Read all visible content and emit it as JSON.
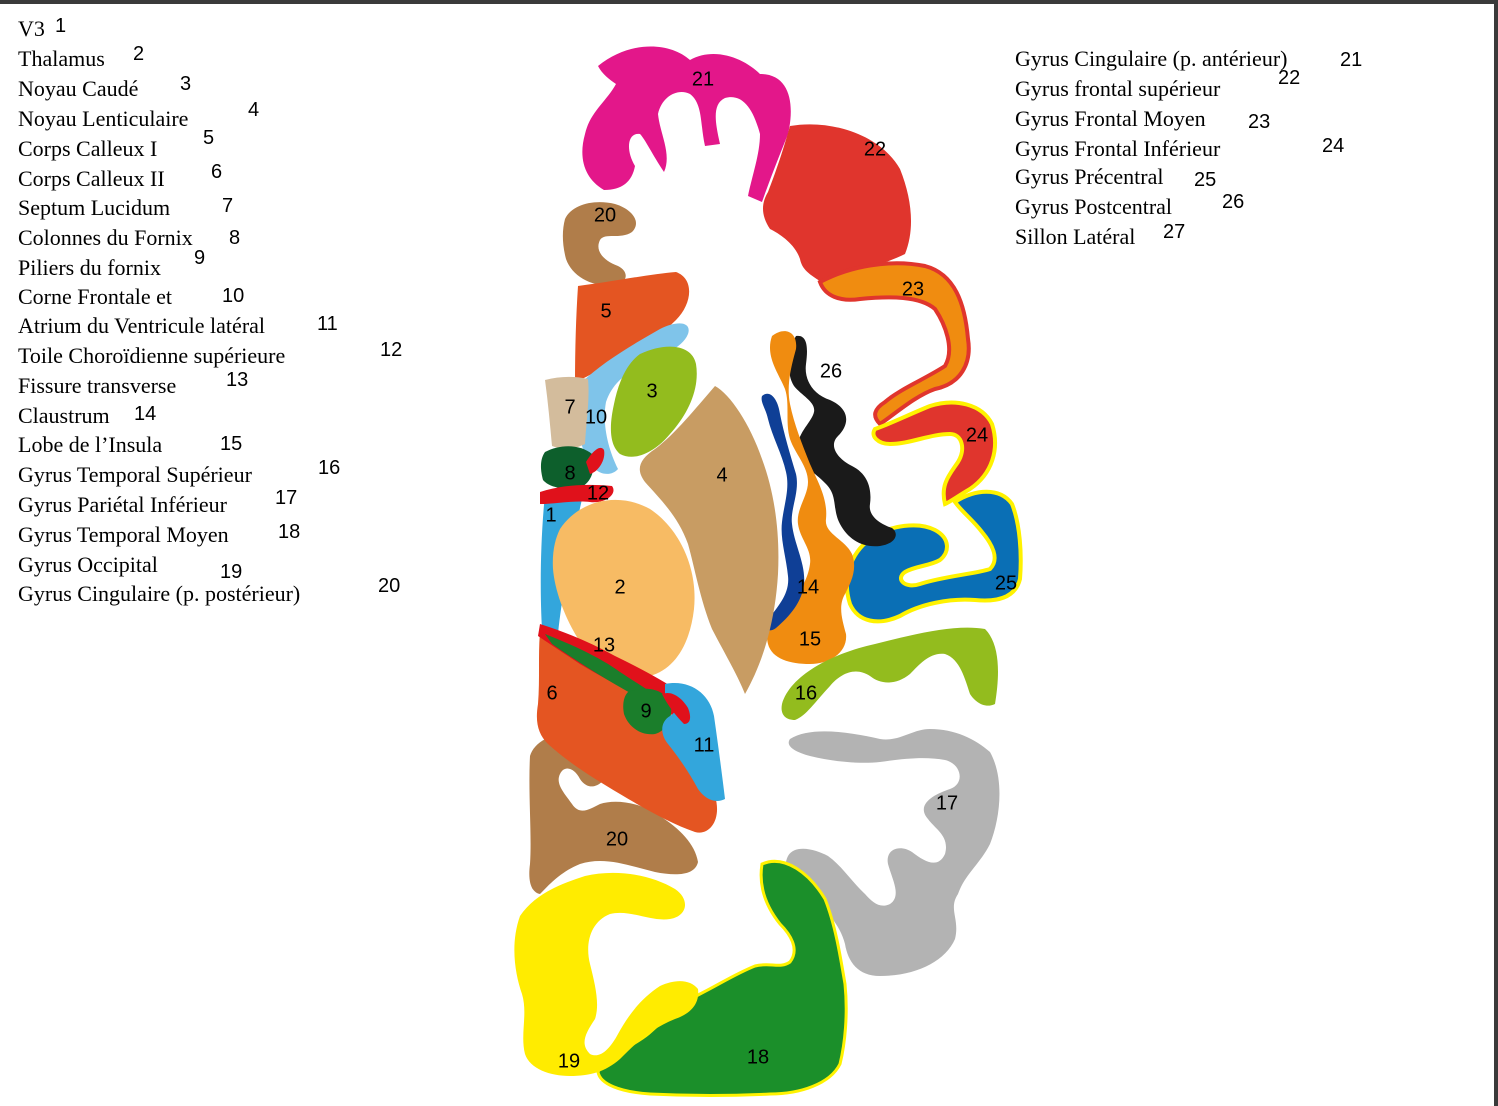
{
  "legend_left": [
    {
      "term": "V3",
      "num": "1"
    },
    {
      "term": "Thalamus",
      "num": "2"
    },
    {
      "term": "Noyau Caudé",
      "num": "3"
    },
    {
      "term": "Noyau Lenticulaire",
      "num": "4"
    },
    {
      "term": "Corps Calleux I",
      "num": "5"
    },
    {
      "term": "Corps Calleux II",
      "num": "6"
    },
    {
      "term": "Septum Lucidum",
      "num": "7"
    },
    {
      "term": "Colonnes du Fornix",
      "num": "8"
    },
    {
      "term": "Piliers du fornix",
      "num": "9"
    },
    {
      "term": "Corne Frontale et",
      "num": "10"
    },
    {
      "term": "Atrium du Ventricule latéral",
      "num": "11"
    },
    {
      "term": "Toile Choroïdienne supérieure",
      "num": "12"
    },
    {
      "term": "Fissure transverse",
      "num": "13"
    },
    {
      "term": "Claustrum",
      "num": "14"
    },
    {
      "term": "Lobe de l’Insula",
      "num": "15"
    },
    {
      "term": "Gyrus Temporal Supérieur",
      "num": "16"
    },
    {
      "term": "Gyrus Pariétal Inférieur",
      "num": "17"
    },
    {
      "term": "Gyrus Temporal Moyen",
      "num": "18"
    },
    {
      "term": "Gyrus Occipital",
      "num": "19"
    },
    {
      "term": "Gyrus Cingulaire (p. postérieur)",
      "num": "20"
    }
  ],
  "legend_right": [
    {
      "term": "Gyrus Cingulaire (p. antérieur)",
      "num": "21"
    },
    {
      "term": "Gyrus frontal supérieur",
      "num": "22"
    },
    {
      "term": "Gyrus Frontal Moyen",
      "num": "23"
    },
    {
      "term": "Gyrus Frontal Inférieur",
      "num": "24"
    },
    {
      "term": "Gyrus Précentral",
      "num": "25"
    },
    {
      "term": "Gyrus Postcentral",
      "num": "26"
    },
    {
      "term": "Sillon Latéral",
      "num": "27"
    }
  ],
  "region_labels": [
    "1",
    "2",
    "3",
    "4",
    "5",
    "6",
    "7",
    "8",
    "9",
    "10",
    "11",
    "12",
    "13",
    "14",
    "15",
    "16",
    "17",
    "18",
    "19",
    "20",
    "20",
    "21",
    "22",
    "23",
    "24",
    "25",
    "26"
  ],
  "colors": {
    "cingulate_anterior": "#e3178a",
    "frontal_superior": "#e0352d",
    "frontal_middle": "#f08c10",
    "frontal_inferior": "#e0352d",
    "frontal_inferior_outline": "#fff200",
    "precentral": "#0a6fb5",
    "postcentral": "#1a1a1a",
    "cingulate_posterior": "#b07d4a",
    "corpus_callosum": "#e45522",
    "caudate": "#93bc1e",
    "lenticular": "#c89c63",
    "thalamus": "#f7bb64",
    "ventricle": "#33a6dc",
    "septum": "#d3bc9c",
    "fornix_column": "#0d5f2c",
    "choroid": "#e0111b",
    "fornix_pillar": "#1b7e2b",
    "claustrum": "#0f3f96",
    "insula": "#f08c10",
    "temporal_superior": "#93bc1e",
    "parietal_inferior": "#b3b3b3",
    "temporal_middle": "#1b8f2a",
    "occipital": "#ffec00"
  }
}
